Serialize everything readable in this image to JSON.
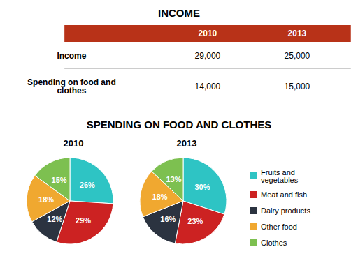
{
  "chart_data": [
    {
      "type": "table",
      "title": "INCOME",
      "categories": [
        "Income",
        "Spending on food and\nclothes"
      ],
      "series": [
        {
          "name": "2010",
          "values": [
            29000,
            14000
          ],
          "value_labels": [
            "29,000",
            "14,000"
          ]
        },
        {
          "name": "2013",
          "values": [
            25000,
            15000
          ],
          "value_labels": [
            "25,000",
            "15,000"
          ]
        }
      ],
      "color": "#B83218"
    },
    {
      "type": "pie",
      "title": "SPENDING ON FOOD AND CLOTHES",
      "categories": [
        "Fruits and\nvegetables",
        "Meat and fish",
        "Dairy products",
        "Other food",
        "Clothes"
      ],
      "colors": [
        "#2EC4C4",
        "#CC2222",
        "#2B3340",
        "#F0A830",
        "#7DC050"
      ],
      "series": [
        {
          "name": "2010",
          "values": [
            26,
            29,
            12,
            18,
            15
          ],
          "value_labels": [
            "26%",
            "29%",
            "12%",
            "18%",
            "15%"
          ]
        },
        {
          "name": "2013",
          "values": [
            30,
            23,
            16,
            18,
            13
          ],
          "value_labels": [
            "30%",
            "23%",
            "16%",
            "18%",
            "13%"
          ]
        }
      ],
      "data_labels": true,
      "legend": "right"
    }
  ]
}
